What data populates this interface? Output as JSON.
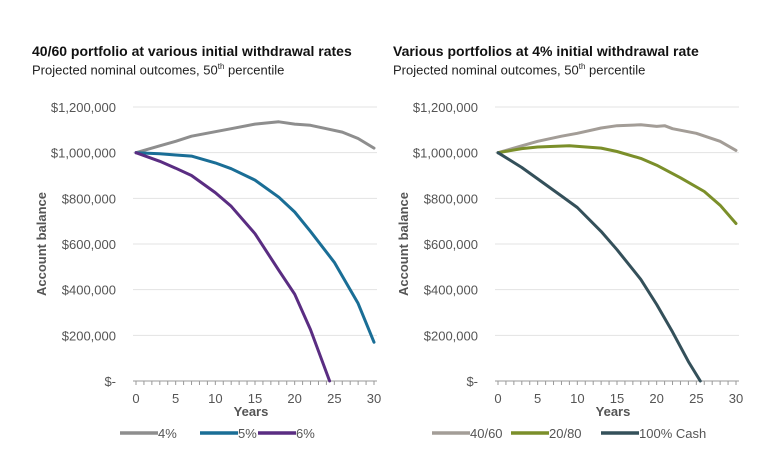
{
  "chart_data": [
    {
      "type": "line",
      "title": "40/60 portfolio at various initial withdrawal rates",
      "subtitle": "Projected nominal outcomes, 50",
      "subtitle_sup": "th",
      "subtitle_end": " percentile",
      "xlabel": "Years",
      "ylabel": "Account balance",
      "xlim": [
        0,
        30
      ],
      "ylim": [
        0,
        1200000
      ],
      "xticks": [
        "0",
        "5",
        "10",
        "15",
        "20",
        "25",
        "30"
      ],
      "yticks": [
        "$-",
        "$200,000",
        "$400,000",
        "$600,000",
        "$800,000",
        "$1,000,000",
        "$1,200,000"
      ],
      "grid": true,
      "legend": "bottom",
      "series": [
        {
          "name": "4%",
          "color": "#8e8e8e",
          "points": [
            [
              0,
              1000000
            ],
            [
              3,
              1030000
            ],
            [
              5,
              1050000
            ],
            [
              7,
              1072000
            ],
            [
              10,
              1092000
            ],
            [
              12,
              1105000
            ],
            [
              15,
              1125000
            ],
            [
              18,
              1135000
            ],
            [
              20,
              1125000
            ],
            [
              22,
              1120000
            ],
            [
              24,
              1105000
            ],
            [
              26,
              1090000
            ],
            [
              28,
              1062000
            ],
            [
              30,
              1020000
            ]
          ]
        },
        {
          "name": "5%",
          "color": "#1a6e96",
          "points": [
            [
              0,
              1000000
            ],
            [
              3,
              995000
            ],
            [
              5,
              990000
            ],
            [
              7,
              985000
            ],
            [
              10,
              955000
            ],
            [
              12,
              930000
            ],
            [
              15,
              880000
            ],
            [
              18,
              805000
            ],
            [
              20,
              740000
            ],
            [
              22,
              655000
            ],
            [
              25,
              520000
            ],
            [
              28,
              340000
            ],
            [
              30,
              170000
            ]
          ]
        },
        {
          "name": "6%",
          "color": "#5a2d82",
          "points": [
            [
              0,
              1000000
            ],
            [
              3,
              962000
            ],
            [
              5,
              932000
            ],
            [
              7,
              900000
            ],
            [
              10,
              825000
            ],
            [
              12,
              765000
            ],
            [
              15,
              645000
            ],
            [
              18,
              485000
            ],
            [
              20,
              380000
            ],
            [
              22,
              225000
            ],
            [
              24.4,
              0
            ]
          ]
        }
      ]
    },
    {
      "type": "line",
      "title": "Various portfolios at 4% initial withdrawal rate",
      "subtitle": "Projected nominal outcomes, 50",
      "subtitle_sup": "th",
      "subtitle_end": " percentile",
      "xlabel": "Years",
      "ylabel": "Account balance",
      "xlim": [
        0,
        30
      ],
      "ylim": [
        0,
        1200000
      ],
      "xticks": [
        "0",
        "5",
        "10",
        "15",
        "20",
        "25",
        "30"
      ],
      "yticks": [
        "$-",
        "$200,000",
        "$400,000",
        "$600,000",
        "$800,000",
        "$1,000,000",
        "$1,200,000"
      ],
      "grid": true,
      "legend": "bottom",
      "series": [
        {
          "name": "40/60",
          "color": "#a39d97",
          "points": [
            [
              0,
              1000000
            ],
            [
              3,
              1030000
            ],
            [
              5,
              1050000
            ],
            [
              8,
              1072000
            ],
            [
              10,
              1085000
            ],
            [
              13,
              1108000
            ],
            [
              15,
              1118000
            ],
            [
              18,
              1122000
            ],
            [
              20,
              1115000
            ],
            [
              21,
              1118000
            ],
            [
              22,
              1105000
            ],
            [
              25,
              1085000
            ],
            [
              28,
              1050000
            ],
            [
              30,
              1010000
            ]
          ]
        },
        {
          "name": "20/80",
          "color": "#7b8f2a",
          "points": [
            [
              0,
              1000000
            ],
            [
              3,
              1018000
            ],
            [
              5,
              1025000
            ],
            [
              9,
              1030000
            ],
            [
              13,
              1020000
            ],
            [
              15,
              1005000
            ],
            [
              18,
              975000
            ],
            [
              20,
              945000
            ],
            [
              23,
              890000
            ],
            [
              26,
              830000
            ],
            [
              28,
              770000
            ],
            [
              30,
              690000
            ]
          ]
        },
        {
          "name": "100% Cash",
          "color": "#34505a",
          "points": [
            [
              0,
              1000000
            ],
            [
              3,
              935000
            ],
            [
              5,
              885000
            ],
            [
              8,
              810000
            ],
            [
              10,
              760000
            ],
            [
              13,
              655000
            ],
            [
              15,
              575000
            ],
            [
              18,
              445000
            ],
            [
              20,
              335000
            ],
            [
              22,
              215000
            ],
            [
              24,
              85000
            ],
            [
              25.5,
              0
            ]
          ]
        }
      ]
    }
  ]
}
